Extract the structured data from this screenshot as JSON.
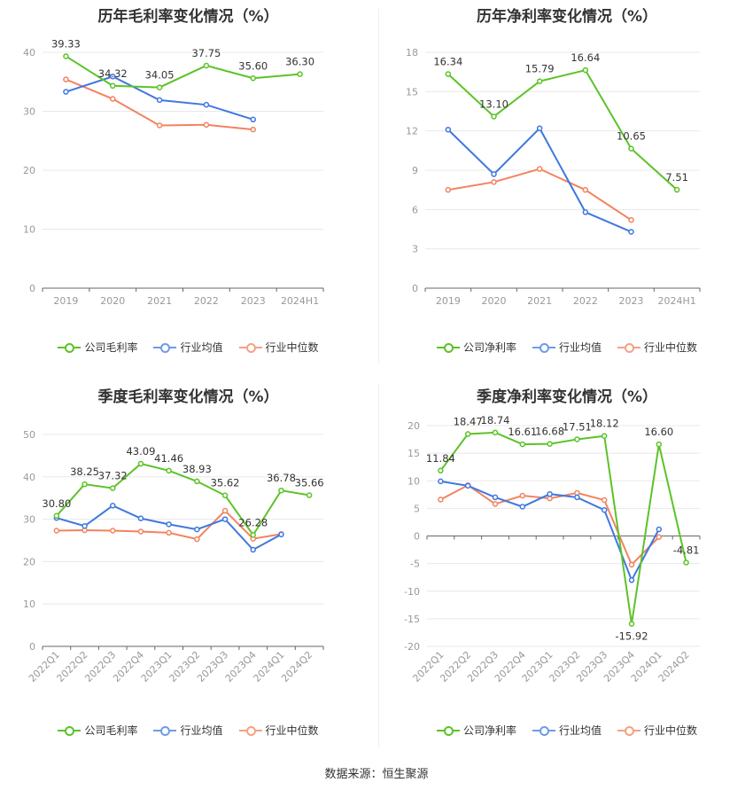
{
  "colors": {
    "company": "#5cc328",
    "industry_avg": "#3f78e0",
    "industry_median": "#f2835f",
    "grid": "#e8e8e8",
    "axis_text": "#999999"
  },
  "source_text": "数据来源：恒生聚源",
  "chart_data": [
    {
      "type": "line",
      "title": "历年毛利率变化情况（%）",
      "categories": [
        "2019",
        "2020",
        "2021",
        "2022",
        "2023",
        "2024H1"
      ],
      "ylim": [
        0,
        40
      ],
      "yticks": [
        0,
        10,
        20,
        30,
        40
      ],
      "grid": true,
      "legend_position": "bottom",
      "series": [
        {
          "name": "公司毛利率",
          "values": [
            39.33,
            34.32,
            34.05,
            37.75,
            35.6,
            36.3
          ],
          "labels": [
            "39.33",
            "34.32",
            "34.05",
            "37.75",
            "35.60",
            "36.30"
          ]
        },
        {
          "name": "行业均值",
          "values": [
            33.3,
            35.9,
            31.9,
            31.1,
            28.6,
            null
          ]
        },
        {
          "name": "行业中位数",
          "values": [
            35.4,
            32.1,
            27.6,
            27.7,
            26.9,
            null
          ]
        }
      ]
    },
    {
      "type": "line",
      "title": "历年净利率变化情况（%）",
      "categories": [
        "2019",
        "2020",
        "2021",
        "2022",
        "2023",
        "2024H1"
      ],
      "ylim": [
        0,
        18
      ],
      "yticks": [
        0,
        3,
        6,
        9,
        12,
        15,
        18
      ],
      "grid": true,
      "legend_position": "bottom",
      "series": [
        {
          "name": "公司净利率",
          "values": [
            16.34,
            13.1,
            15.79,
            16.64,
            10.65,
            7.51
          ],
          "labels": [
            "16.34",
            "13.10",
            "15.79",
            "16.64",
            "10.65",
            "7.51"
          ]
        },
        {
          "name": "行业均值",
          "values": [
            12.1,
            8.7,
            12.2,
            5.8,
            4.3,
            null
          ]
        },
        {
          "name": "行业中位数",
          "values": [
            7.5,
            8.1,
            9.1,
            7.5,
            5.2,
            null
          ]
        }
      ]
    },
    {
      "type": "line",
      "title": "季度毛利率变化情况（%）",
      "categories": [
        "2022Q1",
        "2022Q2",
        "2022Q3",
        "2022Q4",
        "2023Q1",
        "2023Q2",
        "2023Q3",
        "2023Q4",
        "2024Q1",
        "2024Q2"
      ],
      "ylim": [
        0,
        50
      ],
      "yticks": [
        0,
        10,
        20,
        30,
        40,
        50
      ],
      "grid": true,
      "legend_position": "bottom",
      "series": [
        {
          "name": "公司毛利率",
          "values": [
            30.8,
            38.25,
            37.32,
            43.09,
            41.46,
            38.93,
            35.62,
            26.28,
            36.78,
            35.66
          ],
          "labels": [
            "30.80",
            "38.25",
            "37.32",
            "43.09",
            "41.46",
            "38.93",
            "35.62",
            "26.28",
            "36.78",
            "35.66"
          ]
        },
        {
          "name": "行业均值",
          "values": [
            30.3,
            28.4,
            33.2,
            30.2,
            28.8,
            27.6,
            30.0,
            22.8,
            26.4,
            null
          ]
        },
        {
          "name": "行业中位数",
          "values": [
            27.3,
            27.4,
            27.3,
            27.1,
            26.8,
            25.3,
            32.0,
            25.4,
            26.5,
            null
          ]
        }
      ]
    },
    {
      "type": "line",
      "title": "季度净利率变化情况（%）",
      "categories": [
        "2022Q1",
        "2022Q2",
        "2022Q3",
        "2022Q4",
        "2023Q1",
        "2023Q2",
        "2023Q3",
        "2023Q4",
        "2024Q1",
        "2024Q2"
      ],
      "ylim": [
        -20,
        20
      ],
      "yticks": [
        -20,
        -15,
        -10,
        -5,
        0,
        5,
        10,
        15,
        20
      ],
      "grid": true,
      "legend_position": "bottom",
      "series": [
        {
          "name": "公司净利率",
          "values": [
            11.84,
            18.47,
            18.74,
            16.61,
            16.68,
            17.51,
            18.12,
            -15.92,
            16.6,
            -4.81
          ],
          "labels": [
            "11.84",
            "18.47",
            "18.74",
            "16.61",
            "16.68",
            "17.51",
            "18.12",
            "-15.92",
            "16.60",
            "-4.81"
          ]
        },
        {
          "name": "行业均值",
          "values": [
            9.9,
            9.1,
            7.0,
            5.3,
            7.6,
            7.0,
            4.7,
            -8.0,
            1.2,
            null
          ]
        },
        {
          "name": "行业中位数",
          "values": [
            6.6,
            9.2,
            5.8,
            7.3,
            6.8,
            7.8,
            6.5,
            -5.2,
            -0.2,
            null
          ]
        }
      ]
    }
  ]
}
